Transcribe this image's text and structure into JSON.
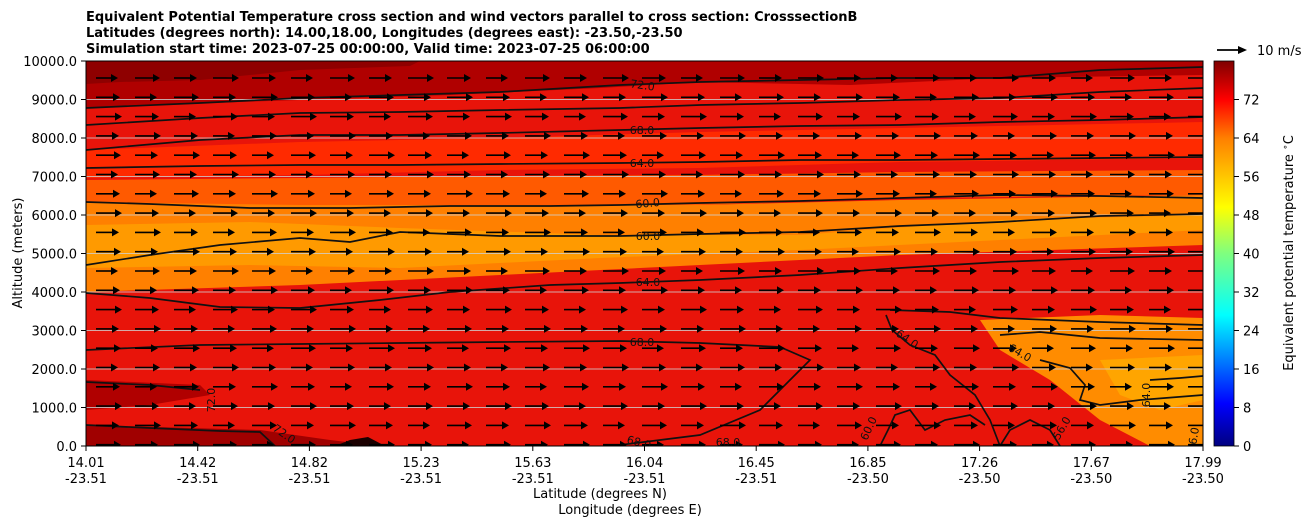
{
  "chart_data": {
    "type": "heatmap",
    "title_lines": [
      "Equivalent Potential Temperature cross section and wind vectors parallel to cross section: CrosssectionB",
      "Latitudes (degrees north): 14.00,18.00, Longitudes (degrees east): -23.50,-23.50",
      "Simulation start time: 2023-07-25 00:00:00, Valid time: 2023-07-25 06:00:00"
    ],
    "ylabel": "Altitude (meters)",
    "xlabel_lines": [
      "Latitude (degrees N)",
      "Longitude (degrees E)"
    ],
    "ylim": [
      0,
      10000
    ],
    "y_ticks": [
      "0.0",
      "1000.0",
      "2000.0",
      "3000.0",
      "4000.0",
      "5000.0",
      "6000.0",
      "7000.0",
      "8000.0",
      "9000.0",
      "10000.0"
    ],
    "x_ticks": [
      {
        "lat": "14.01",
        "lon": "-23.51"
      },
      {
        "lat": "14.42",
        "lon": "-23.51"
      },
      {
        "lat": "14.82",
        "lon": "-23.51"
      },
      {
        "lat": "15.23",
        "lon": "-23.51"
      },
      {
        "lat": "15.63",
        "lon": "-23.51"
      },
      {
        "lat": "16.04",
        "lon": "-23.51"
      },
      {
        "lat": "16.45",
        "lon": "-23.51"
      },
      {
        "lat": "16.85",
        "lon": "-23.50"
      },
      {
        "lat": "17.26",
        "lon": "-23.50"
      },
      {
        "lat": "17.67",
        "lon": "-23.50"
      },
      {
        "lat": "17.99",
        "lon": "-23.50"
      }
    ],
    "grid": "horizontal",
    "colorbar": {
      "label": "Equivalent potential temperature $^\\circ$C",
      "range": [
        0,
        80
      ],
      "ticks": [
        "0",
        "8",
        "16",
        "24",
        "32",
        "40",
        "48",
        "56",
        "64",
        "72"
      ],
      "colormap": "jet"
    },
    "quiver_key": {
      "label": "10 m/s",
      "position": "top-right"
    },
    "contour_labels": [
      "72.0",
      "68.0",
      "64.0",
      "60.0",
      "60.0",
      "64.0",
      "68.0",
      "72.0",
      "72.0",
      "68.0",
      "68.0",
      "64.0",
      "64.0",
      "60.0",
      "56.0",
      "64.0",
      "76.0"
    ]
  }
}
